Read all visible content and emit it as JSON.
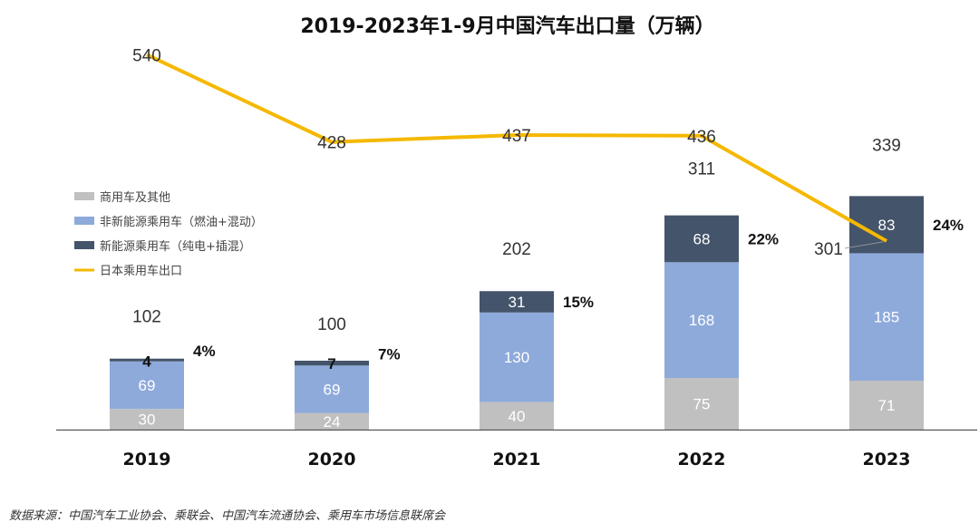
{
  "chart_data": {
    "type": "bar",
    "title": "2019-2023年1-9月中国汽车出口量（万辆）",
    "categories": [
      "2019",
      "2020",
      "2021",
      "2022",
      "2023"
    ],
    "series": [
      {
        "name": "商用车及其他",
        "values": [
          30,
          24,
          40,
          75,
          71
        ],
        "color": "#c0c0c0",
        "label_color": "#ffffff"
      },
      {
        "name": "非新能源乘用车（燃油+混动）",
        "values": [
          69,
          69,
          130,
          168,
          185
        ],
        "color": "#8eaadb",
        "label_color": "#ffffff"
      },
      {
        "name": "新能源乘用车（纯电+插混）",
        "values": [
          4,
          7,
          31,
          68,
          83
        ],
        "color": "#44546a",
        "label_color": "#ffffff"
      }
    ],
    "totals": [
      102,
      100,
      202,
      311,
      339
    ],
    "nev_share_labels": [
      "4%",
      "7%",
      "15%",
      "22%",
      "24%"
    ],
    "line_series": {
      "name": "日本乘用车出口",
      "values": [
        540,
        428,
        437,
        436,
        301
      ],
      "color": "#f5b800"
    }
  },
  "source": "数据来源：中国汽车工业协会、乘联会、中国汽车流通协会、乘用车市场信息联席会"
}
